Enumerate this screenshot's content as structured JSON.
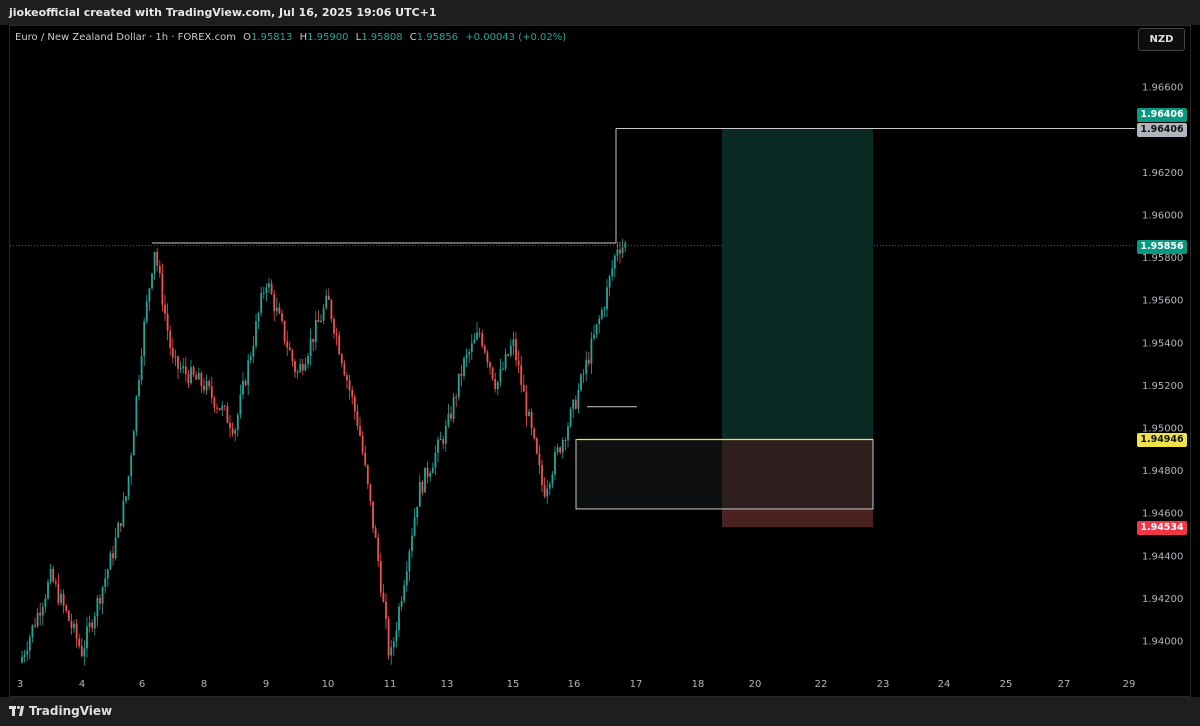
{
  "header": {
    "caption": "jiokeofficial created with TradingView.com, Jul 16, 2025 19:06 UTC+1"
  },
  "legend": {
    "symbol": "Euro / New Zealand Dollar · 1h · FOREX.com",
    "open_label": "O",
    "open": "1.95813",
    "high_label": "H",
    "high": "1.95900",
    "low_label": "L",
    "low": "1.95808",
    "close_label": "C",
    "close": "1.95856",
    "change": "+0.00043 (+0.02%)"
  },
  "currency_button": "NZD",
  "footer": {
    "brand": "TradingView",
    "logo_icon": "tradingview-logo-icon"
  },
  "price_labels": {
    "target_top": "1.96406",
    "target_line": "1.96406",
    "last_price": "1.95856",
    "entry": "1.94946",
    "stop": "1.94534"
  },
  "colors": {
    "bull": "#26a69a",
    "bear": "#ef5350",
    "profit_zone": "#0c2a24",
    "loss_zone": "#4a2220",
    "entry_line": "#f0e34a",
    "grey_box": "#1a1c1e"
  },
  "chart_data": {
    "type": "candlestick",
    "instrument": "Euro / New Zealand Dollar",
    "timeframe": "1h",
    "y_axis": {
      "ticks": [
        "1.94000",
        "1.94200",
        "1.94400",
        "1.94600",
        "1.94800",
        "1.95000",
        "1.95200",
        "1.95400",
        "1.95600",
        "1.95800",
        "1.96000",
        "1.96200",
        "1.96600"
      ],
      "ylim": [
        1.9385,
        1.968
      ]
    },
    "x_axis": {
      "ticks": [
        "3",
        "4",
        "6",
        "8",
        "9",
        "10",
        "11",
        "13",
        "15",
        "16",
        "17",
        "18",
        "20",
        "22",
        "23",
        "24",
        "25",
        "27",
        "29"
      ]
    },
    "approx_close_path": [
      {
        "d": "3",
        "p": 1.939
      },
      {
        "d": "3.5",
        "p": 1.943
      },
      {
        "d": "4",
        "p": 1.9395
      },
      {
        "d": "5",
        "p": 1.944
      },
      {
        "d": "5.5",
        "p": 1.947
      },
      {
        "d": "6",
        "p": 1.954
      },
      {
        "d": "6.4",
        "p": 1.9585
      },
      {
        "d": "7",
        "p": 1.953
      },
      {
        "d": "8",
        "p": 1.952
      },
      {
        "d": "8.5",
        "p": 1.95
      },
      {
        "d": "9",
        "p": 1.957
      },
      {
        "d": "9.5",
        "p": 1.9525
      },
      {
        "d": "10",
        "p": 1.956
      },
      {
        "d": "10.5",
        "p": 1.95
      },
      {
        "d": "10.8",
        "p": 1.944
      },
      {
        "d": "11",
        "p": 1.939
      },
      {
        "d": "11.5",
        "p": 1.943
      },
      {
        "d": "12",
        "p": 1.947
      },
      {
        "d": "13",
        "p": 1.95
      },
      {
        "d": "13.5",
        "p": 1.953
      },
      {
        "d": "14",
        "p": 1.9545
      },
      {
        "d": "14.5",
        "p": 1.952
      },
      {
        "d": "15",
        "p": 1.954
      },
      {
        "d": "15.5",
        "p": 1.947
      },
      {
        "d": "16",
        "p": 1.951
      },
      {
        "d": "16.3",
        "p": 1.954
      },
      {
        "d": "16.5",
        "p": 1.956
      },
      {
        "d": "16.7",
        "p": 1.95856
      }
    ],
    "horizontal_levels": [
      {
        "name": "resistance",
        "price": 1.9587
      },
      {
        "name": "last",
        "price": 1.95856
      },
      {
        "name": "target",
        "price": 1.96406
      },
      {
        "name": "entry",
        "price": 1.94946
      },
      {
        "name": "stop",
        "price": 1.94534
      },
      {
        "name": "minor",
        "price": 1.951
      }
    ],
    "position": {
      "direction": "long",
      "entry": 1.94946,
      "target": 1.96406,
      "stop": 1.94534
    }
  }
}
